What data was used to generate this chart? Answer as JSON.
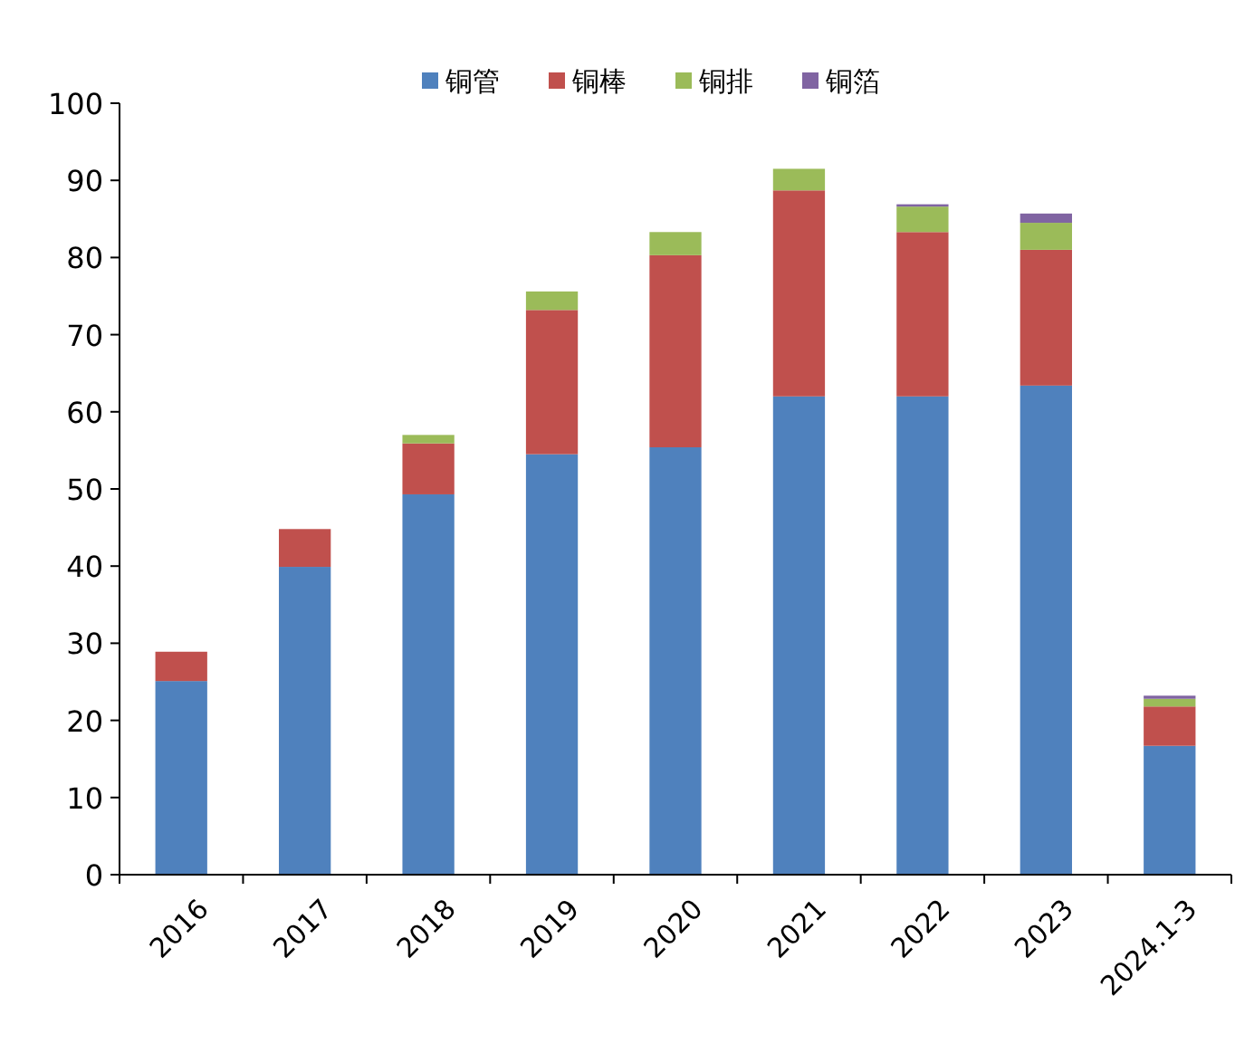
{
  "chart_data": {
    "type": "bar",
    "stacked": true,
    "categories": [
      "2016",
      "2017",
      "2018",
      "2019",
      "2020",
      "2021",
      "2022",
      "2023",
      "2024.1-3"
    ],
    "series": [
      {
        "name": "铜管",
        "color": "#4f81bd",
        "values": [
          25.1,
          39.9,
          49.3,
          54.5,
          55.4,
          62.0,
          62.0,
          63.4,
          16.7
        ]
      },
      {
        "name": "铜棒",
        "color": "#c0504d",
        "values": [
          3.8,
          4.9,
          6.6,
          18.7,
          24.9,
          26.7,
          21.3,
          17.6,
          5.1
        ]
      },
      {
        "name": "铜排",
        "color": "#9bbb59",
        "values": [
          null,
          null,
          1.1,
          2.4,
          3.0,
          2.8,
          3.3,
          3.5,
          1.0
        ]
      },
      {
        "name": "铜箔",
        "color": "#8064a2",
        "values": [
          null,
          null,
          null,
          null,
          null,
          null,
          0.3,
          1.2,
          0.4
        ]
      }
    ],
    "ylim": [
      0,
      100
    ],
    "yticks": [
      0,
      10,
      20,
      30,
      40,
      50,
      60,
      70,
      80,
      90,
      100
    ],
    "legend": "top",
    "grid": false
  }
}
